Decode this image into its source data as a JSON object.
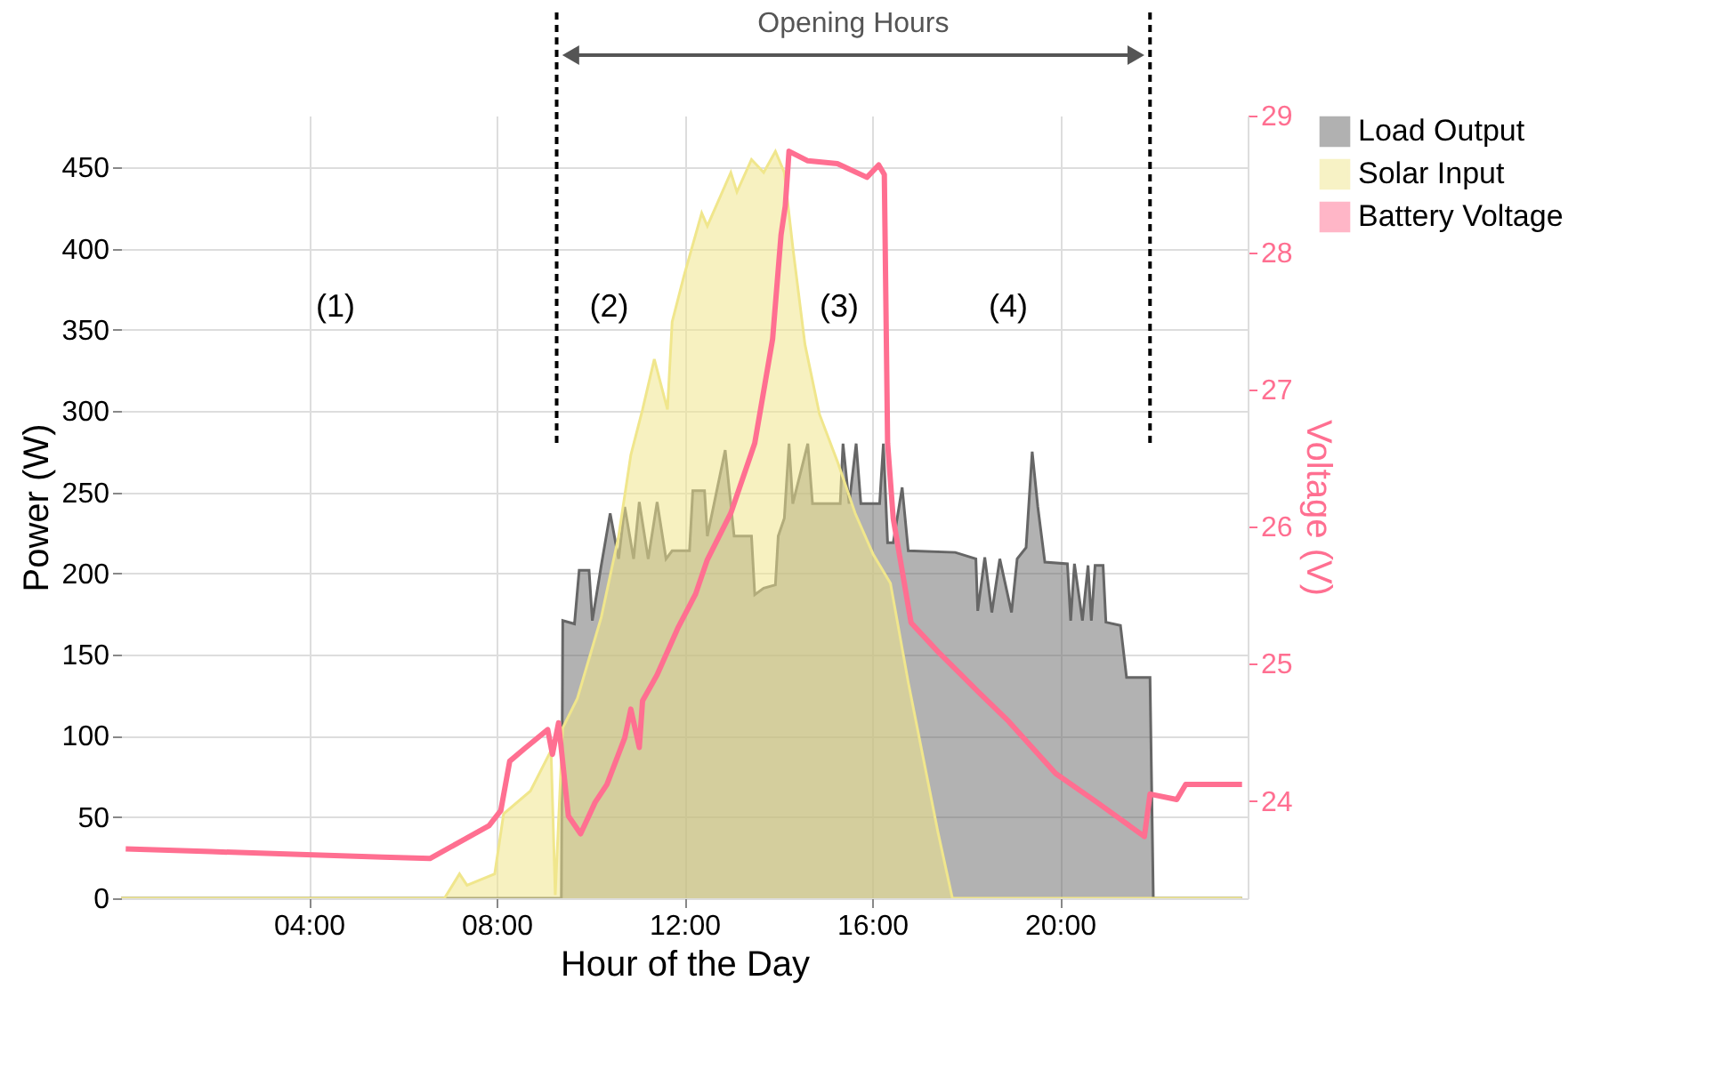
{
  "chart_data": {
    "type": "area",
    "xlabel": "Hour of the Day",
    "ylabel": "Power (W)",
    "y2label": "Voltage (V)",
    "xlim": [
      0,
      24
    ],
    "xticks": [
      {
        "value": 4,
        "label": "04:00"
      },
      {
        "value": 8,
        "label": "08:00"
      },
      {
        "value": 12,
        "label": "12:00"
      },
      {
        "value": 16,
        "label": "16:00"
      },
      {
        "value": 20,
        "label": "20:00"
      }
    ],
    "ylim": [
      0,
      482
    ],
    "yticks": [
      0,
      50,
      100,
      150,
      200,
      250,
      300,
      350,
      400,
      450
    ],
    "y2lim": [
      23.29,
      29
    ],
    "y2ticks": [
      24,
      25,
      26,
      27,
      28,
      29
    ],
    "grid": true,
    "legend": "top right",
    "annotations": [
      "Opening Hours",
      "(1)",
      "(2)",
      "(3)",
      "(4)"
    ],
    "ref_lines": [
      {
        "axis": "x",
        "value": 9.28,
        "label": null,
        "color": "#000000",
        "line_style": "dashed"
      },
      {
        "axis": "x",
        "value": 21.92,
        "label": null,
        "color": "#000000",
        "line_style": "dashed"
      }
    ],
    "series": [
      {
        "name": "Load Output",
        "color": "#666666",
        "x": [
          0,
          9.38,
          9.41,
          9.66,
          9.76,
          9.97,
          10.04,
          10.23,
          10.42,
          10.6,
          10.73,
          10.92,
          11.04,
          11.23,
          11.42,
          11.61,
          11.74,
          12.11,
          12.18,
          12.43,
          12.49,
          12.87,
          13.06,
          13.43,
          13.5,
          13.69,
          13.94,
          14.0,
          14.13,
          14.23,
          14.31,
          14.63,
          14.73,
          15.32,
          15.38,
          15.51,
          15.66,
          15.76,
          16.16,
          16.24,
          16.33,
          16.45,
          16.64,
          16.77,
          17.77,
          18.21,
          18.25,
          18.4,
          18.55,
          18.72,
          18.97,
          19.09,
          19.28,
          19.41,
          19.53,
          19.68,
          20.16,
          20.23,
          20.31,
          20.48,
          20.6,
          20.67,
          20.75,
          20.92,
          20.98,
          21.29,
          21.42,
          21.92,
          21.99,
          23.88
        ],
        "values": [
          0,
          0,
          171,
          169,
          202,
          202,
          171,
          205,
          237,
          209,
          241,
          209,
          244,
          209,
          244,
          209,
          214,
          214,
          251,
          251,
          223,
          276,
          223,
          223,
          187,
          191,
          193,
          223,
          234,
          280,
          243,
          280,
          243,
          243,
          280,
          243,
          280,
          243,
          243,
          280,
          219,
          219,
          253,
          214,
          213,
          209,
          177,
          210,
          176,
          209,
          176,
          209,
          216,
          275,
          241,
          207,
          206,
          171,
          206,
          171,
          205,
          171,
          205,
          205,
          170,
          168,
          136,
          136,
          0,
          0
        ]
      },
      {
        "name": "Solar Input",
        "color": "#f0e68c",
        "x": [
          0,
          6.89,
          7.21,
          7.37,
          7.96,
          8.15,
          8.72,
          9.16,
          9.25,
          9.41,
          9.72,
          10.23,
          10.6,
          10.86,
          11.11,
          11.36,
          11.64,
          11.74,
          11.99,
          12.37,
          12.49,
          12.99,
          13.12,
          13.43,
          13.69,
          13.94,
          14.13,
          14.31,
          14.57,
          14.88,
          15.26,
          15.64,
          16.02,
          16.39,
          16.77,
          17.4,
          17.71,
          23.88
        ],
        "values": [
          0,
          0,
          15,
          8,
          15,
          52,
          66,
          91,
          2,
          105,
          123,
          173,
          223,
          273,
          301,
          332,
          301,
          355,
          383,
          422,
          414,
          447,
          435,
          455,
          447,
          460,
          447,
          401,
          341,
          298,
          269,
          237,
          212,
          194,
          133,
          41,
          0,
          0
        ]
      },
      {
        "name": "Battery Voltage",
        "type": "line",
        "axis": "y2",
        "color": "#ff6f91",
        "x": [
          0.1,
          1.92,
          3.81,
          5.57,
          6.58,
          7.21,
          7.84,
          8.09,
          8.28,
          8.59,
          9.09,
          9.19,
          9.32,
          9.53,
          9.79,
          10.1,
          10.35,
          10.73,
          10.86,
          11.04,
          11.11,
          11.42,
          11.86,
          12.24,
          12.49,
          12.99,
          13.5,
          13.88,
          14.06,
          14.15,
          14.23,
          14.63,
          15.26,
          15.89,
          16.14,
          16.26,
          16.33,
          16.45,
          16.83,
          17.4,
          18.28,
          18.91,
          19.91,
          20.79,
          21.8,
          21.92,
          22.49,
          22.68,
          23.88
        ],
        "values": [
          23.65,
          23.63,
          23.61,
          23.59,
          23.58,
          23.7,
          23.82,
          23.93,
          24.29,
          24.38,
          24.52,
          24.34,
          24.57,
          23.89,
          23.76,
          23.99,
          24.12,
          24.46,
          24.67,
          24.39,
          24.73,
          24.92,
          25.26,
          25.51,
          25.76,
          26.1,
          26.61,
          27.37,
          28.13,
          28.34,
          28.74,
          28.67,
          28.65,
          28.55,
          28.64,
          28.57,
          26.61,
          26.06,
          25.3,
          25.09,
          24.79,
          24.58,
          24.2,
          23.99,
          23.74,
          24.05,
          24.01,
          24.12,
          24.12
        ]
      }
    ]
  }
}
